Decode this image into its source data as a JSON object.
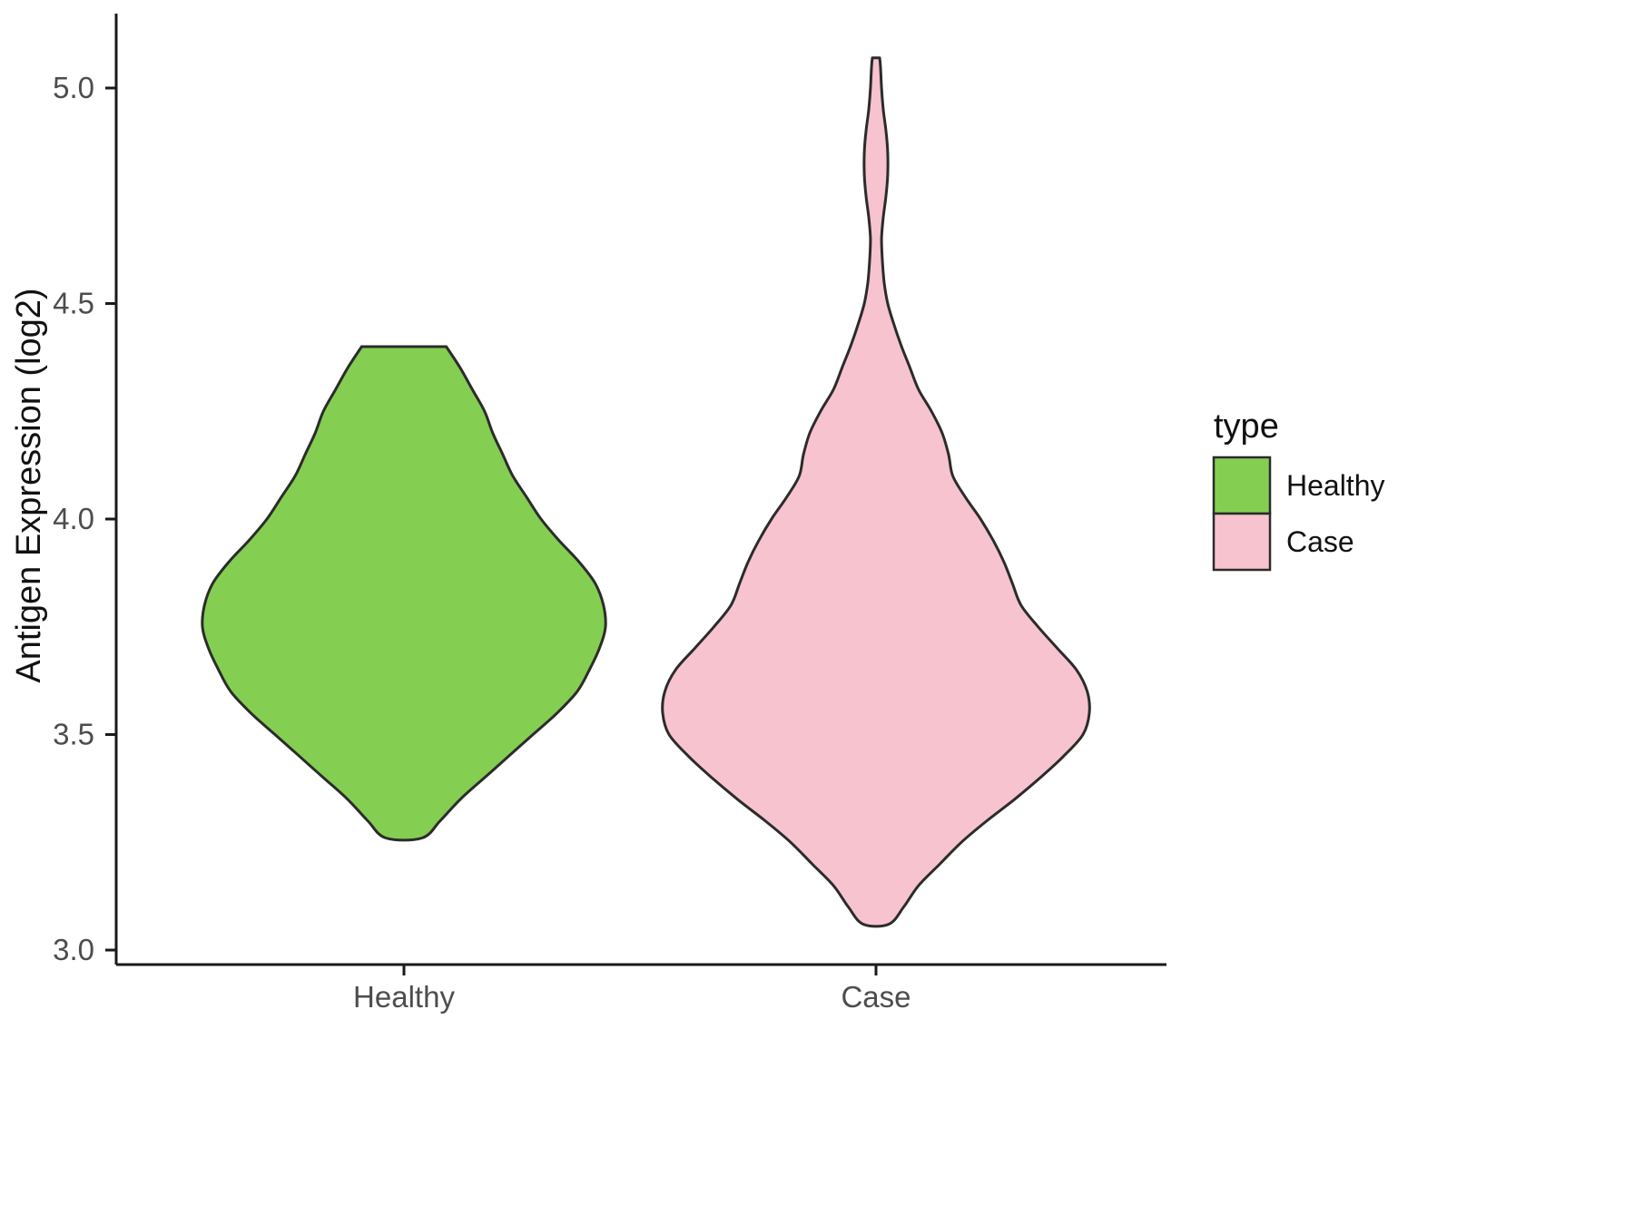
{
  "chart_data": {
    "type": "violin",
    "title": "",
    "xlabel": "",
    "ylabel": "Antigen Expression (log2)",
    "categories": [
      "Healthy",
      "Case"
    ],
    "y_ticks": [
      3.0,
      3.5,
      4.0,
      4.5,
      5.0
    ],
    "y_tick_labels": [
      "3.0",
      "3.5",
      "4.0",
      "4.5",
      "5.0"
    ],
    "ylim": [
      2.95,
      5.15
    ],
    "grid": "off",
    "legend_position": "right",
    "legend": {
      "title": "type",
      "entries": [
        {
          "label": "Healthy",
          "color": "#84CE51"
        },
        {
          "label": "Case",
          "color": "#F6C3CE"
        }
      ]
    },
    "series": [
      {
        "name": "Healthy",
        "color": "#84CE51",
        "value_range": [
          3.26,
          4.4
        ],
        "profile": [
          [
            3.26,
            0.09
          ],
          [
            3.3,
            0.18
          ],
          [
            3.35,
            0.28
          ],
          [
            3.4,
            0.4
          ],
          [
            3.45,
            0.52
          ],
          [
            3.5,
            0.64
          ],
          [
            3.55,
            0.76
          ],
          [
            3.6,
            0.86
          ],
          [
            3.65,
            0.92
          ],
          [
            3.7,
            0.97
          ],
          [
            3.75,
            1.0
          ],
          [
            3.8,
            0.99
          ],
          [
            3.85,
            0.95
          ],
          [
            3.9,
            0.87
          ],
          [
            3.95,
            0.77
          ],
          [
            4.0,
            0.68
          ],
          [
            4.05,
            0.61
          ],
          [
            4.1,
            0.54
          ],
          [
            4.15,
            0.49
          ],
          [
            4.2,
            0.44
          ],
          [
            4.25,
            0.4
          ],
          [
            4.3,
            0.34
          ],
          [
            4.35,
            0.28
          ],
          [
            4.4,
            0.21
          ]
        ]
      },
      {
        "name": "Case",
        "color": "#F6C3CE",
        "value_range": [
          3.06,
          5.07
        ],
        "profile": [
          [
            3.06,
            0.06
          ],
          [
            3.1,
            0.13
          ],
          [
            3.15,
            0.2
          ],
          [
            3.2,
            0.3
          ],
          [
            3.25,
            0.4
          ],
          [
            3.3,
            0.52
          ],
          [
            3.35,
            0.65
          ],
          [
            3.4,
            0.77
          ],
          [
            3.45,
            0.88
          ],
          [
            3.5,
            0.97
          ],
          [
            3.55,
            1.0
          ],
          [
            3.6,
            0.99
          ],
          [
            3.65,
            0.94
          ],
          [
            3.7,
            0.85
          ],
          [
            3.75,
            0.76
          ],
          [
            3.8,
            0.68
          ],
          [
            3.85,
            0.64
          ],
          [
            3.9,
            0.6
          ],
          [
            3.95,
            0.55
          ],
          [
            4.0,
            0.49
          ],
          [
            4.05,
            0.42
          ],
          [
            4.1,
            0.36
          ],
          [
            4.15,
            0.34
          ],
          [
            4.2,
            0.31
          ],
          [
            4.25,
            0.26
          ],
          [
            4.3,
            0.2
          ],
          [
            4.35,
            0.16
          ],
          [
            4.4,
            0.12
          ],
          [
            4.45,
            0.085
          ],
          [
            4.5,
            0.055
          ],
          [
            4.55,
            0.038
          ],
          [
            4.6,
            0.03
          ],
          [
            4.65,
            0.026
          ],
          [
            4.7,
            0.034
          ],
          [
            4.75,
            0.047
          ],
          [
            4.8,
            0.055
          ],
          [
            4.85,
            0.055
          ],
          [
            4.9,
            0.047
          ],
          [
            4.95,
            0.034
          ],
          [
            5.0,
            0.026
          ],
          [
            5.05,
            0.021
          ],
          [
            5.07,
            0.017
          ]
        ]
      }
    ]
  },
  "colors": {
    "violin_stroke": "#2b2b2b",
    "axis_line": "#1a1a1a",
    "tick_text": "#4d4d4d",
    "text": "#111111",
    "background": "#ffffff"
  }
}
